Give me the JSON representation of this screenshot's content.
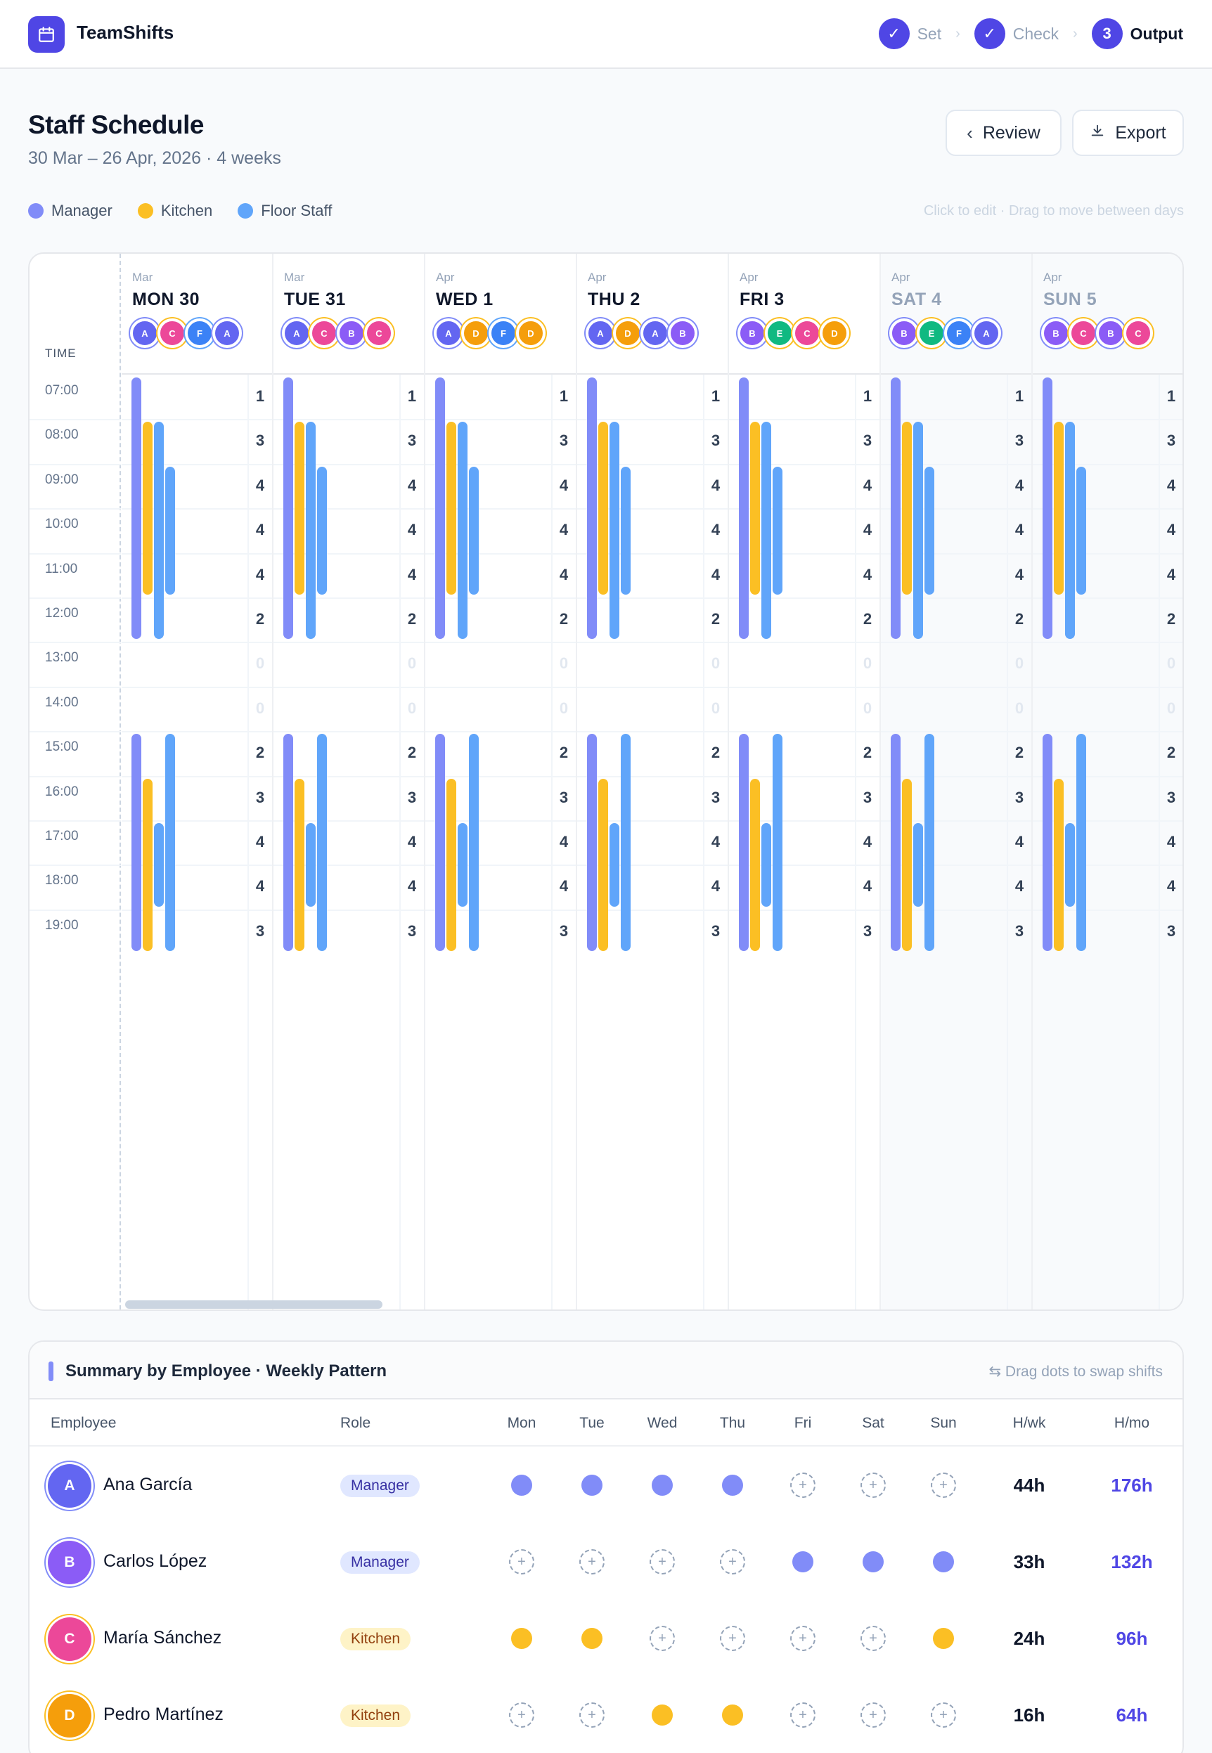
{
  "app": {
    "name": "TeamShifts"
  },
  "steps": [
    {
      "label": "Set",
      "state": "done",
      "num": "✓"
    },
    {
      "label": "Check",
      "state": "done",
      "num": "✓"
    },
    {
      "label": "Output",
      "state": "active",
      "num": "3"
    }
  ],
  "page": {
    "title": "Staff Schedule",
    "subtitle": "30 Mar – 26 Apr, 2026 · 4 weeks",
    "review_label": "Review",
    "export_label": "Export",
    "hint": "Click to edit · Drag to move between days"
  },
  "legend": [
    {
      "label": "Manager",
      "color": "#818cf8"
    },
    {
      "label": "Kitchen",
      "color": "#fbbf24"
    },
    {
      "label": "Floor Staff",
      "color": "#60a5fa"
    }
  ],
  "colors": {
    "A": "#6366f1",
    "B": "#8b5cf6",
    "C": "#ec4899",
    "D": "#f59e0b",
    "E": "#10b981",
    "F": "#3b82f6"
  },
  "ring": {
    "A": "#818cf8",
    "B": "#818cf8",
    "C": "#fbbf24",
    "D": "#fbbf24",
    "E": "#fbbf24",
    "F": "#60a5fa"
  },
  "schedule": {
    "time_header": "TIME",
    "hours": [
      "07:00",
      "08:00",
      "09:00",
      "10:00",
      "11:00",
      "12:00",
      "13:00",
      "14:00",
      "15:00",
      "16:00",
      "17:00",
      "18:00",
      "19:00"
    ],
    "days": [
      {
        "month": "Mar",
        "name": "MON 30",
        "weekend": false,
        "avatars": [
          "A",
          "C",
          "F",
          "A"
        ],
        "counts": [
          "1",
          "3",
          "4",
          "4",
          "4",
          "2",
          "0",
          "0",
          "2",
          "3",
          "4",
          "4",
          "3"
        ]
      },
      {
        "month": "Mar",
        "name": "TUE 31",
        "weekend": false,
        "avatars": [
          "A",
          "C",
          "B",
          "C"
        ],
        "counts": [
          "1",
          "3",
          "4",
          "4",
          "4",
          "2",
          "0",
          "0",
          "2",
          "3",
          "4",
          "4",
          "3"
        ]
      },
      {
        "month": "Apr",
        "name": "WED 1",
        "weekend": false,
        "avatars": [
          "A",
          "D",
          "F",
          "D"
        ],
        "counts": [
          "1",
          "3",
          "4",
          "4",
          "4",
          "2",
          "0",
          "0",
          "2",
          "3",
          "4",
          "4",
          "3"
        ]
      },
      {
        "month": "Apr",
        "name": "THU 2",
        "weekend": false,
        "avatars": [
          "A",
          "D",
          "A",
          "B"
        ],
        "counts": [
          "1",
          "3",
          "4",
          "4",
          "4",
          "2",
          "0",
          "0",
          "2",
          "3",
          "4",
          "4",
          "3"
        ]
      },
      {
        "month": "Apr",
        "name": "FRI 3",
        "weekend": false,
        "avatars": [
          "B",
          "E",
          "C",
          "D"
        ],
        "counts": [
          "1",
          "3",
          "4",
          "4",
          "4",
          "2",
          "0",
          "0",
          "2",
          "3",
          "4",
          "4",
          "3"
        ]
      },
      {
        "month": "Apr",
        "name": "SAT 4",
        "weekend": true,
        "avatars": [
          "B",
          "E",
          "F",
          "A"
        ],
        "counts": [
          "1",
          "3",
          "4",
          "4",
          "4",
          "2",
          "0",
          "0",
          "2",
          "3",
          "4",
          "4",
          "3"
        ]
      },
      {
        "month": "Apr",
        "name": "SUN 5",
        "weekend": true,
        "avatars": [
          "B",
          "C",
          "B",
          "C"
        ],
        "counts": [
          "1",
          "3",
          "4",
          "4",
          "4",
          "2",
          "0",
          "0",
          "2",
          "3",
          "4",
          "4",
          "3"
        ]
      }
    ]
  },
  "summary": {
    "title": "Summary by Employee · Weekly Pattern",
    "hint": "⇆ Drag dots to swap shifts",
    "columns": [
      "Employee",
      "Role",
      "Mon",
      "Tue",
      "Wed",
      "Thu",
      "Fri",
      "Sat",
      "Sun",
      "H/wk",
      "H/mo"
    ],
    "employees": [
      {
        "initial": "A",
        "name": "Ana García",
        "role": "Manager",
        "role_key": "manager",
        "color": "#818cf8",
        "days": [
          1,
          1,
          1,
          1,
          0,
          0,
          0
        ],
        "hwk": "44h",
        "hmo": "176h"
      },
      {
        "initial": "B",
        "name": "Carlos López",
        "role": "Manager",
        "role_key": "manager",
        "color": "#818cf8",
        "days": [
          0,
          0,
          0,
          0,
          1,
          1,
          1
        ],
        "hwk": "33h",
        "hmo": "132h"
      },
      {
        "initial": "C",
        "name": "María Sánchez",
        "role": "Kitchen",
        "role_key": "kitchen",
        "color": "#fbbf24",
        "days": [
          1,
          1,
          0,
          0,
          0,
          0,
          1
        ],
        "hwk": "24h",
        "hmo": "96h"
      },
      {
        "initial": "D",
        "name": "Pedro Martínez",
        "role": "Kitchen",
        "role_key": "kitchen",
        "color": "#fbbf24",
        "days": [
          0,
          0,
          1,
          1,
          0,
          0,
          0
        ],
        "hwk": "16h",
        "hmo": "64h"
      }
    ]
  }
}
